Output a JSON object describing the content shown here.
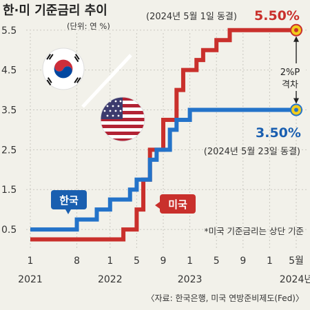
{
  "title": "한·미 기준금리 추이",
  "unit_note": "(단위: 연 %)",
  "colors": {
    "korea": "#1a5fb0",
    "korea_line": "#2473c9",
    "us": "#c9302c",
    "us_line": "#c9302c",
    "background": "#f2f1ea",
    "grid": "#c9c8c0",
    "marker_fill": "#f2cc1c"
  },
  "annotations": {
    "us_final_date": "(2024년 5월 1일 동결)",
    "us_final_rate": "5.50%",
    "korea_final_rate": "3.50%",
    "korea_final_date": "(2024년 5월 23일 동결)",
    "gap_line1": "2%P",
    "gap_line2": "격차",
    "korea_badge": "한국",
    "us_badge": "미국",
    "footnote": "*미국 기준금리는 상단 기준"
  },
  "source": "〈자료: 한국은행, 미국 연방준비제도(Fed)〉",
  "chart_data": {
    "type": "line",
    "title": "한·미 기준금리 추이",
    "ylabel": "",
    "xlabel": "",
    "ylim": [
      0,
      5.6
    ],
    "y_ticks": [
      "0.5",
      "1.5",
      "2.5",
      "3.5",
      "4.5",
      "5.5"
    ],
    "x_ticks": [
      {
        "month": "2021-01",
        "label": "1"
      },
      {
        "month": "2021-08",
        "label": "8"
      },
      {
        "month": "2022-01",
        "label": "1"
      },
      {
        "month": "2022-05",
        "label": "5"
      },
      {
        "month": "2022-09",
        "label": "9"
      },
      {
        "month": "2023-01",
        "label": "1"
      },
      {
        "month": "2023-05",
        "label": "5"
      },
      {
        "month": "2023-09",
        "label": "9"
      },
      {
        "month": "2024-01",
        "label": "1"
      },
      {
        "month": "2024-05",
        "label": "5월"
      }
    ],
    "year_labels": [
      {
        "month": "2021-01",
        "label": "2021"
      },
      {
        "month": "2022-01",
        "label": "2022"
      },
      {
        "month": "2023-01",
        "label": "2023"
      },
      {
        "month": "2024-05",
        "label": "2024년"
      }
    ],
    "x_range": [
      "2021-01",
      "2024-05"
    ],
    "grid": true,
    "series": [
      {
        "name": "한국",
        "step": true,
        "points": [
          {
            "x": "2021-01",
            "y": 0.5
          },
          {
            "x": "2021-08",
            "y": 0.75
          },
          {
            "x": "2021-11",
            "y": 1.0
          },
          {
            "x": "2022-01",
            "y": 1.25
          },
          {
            "x": "2022-04",
            "y": 1.5
          },
          {
            "x": "2022-05",
            "y": 1.75
          },
          {
            "x": "2022-07",
            "y": 2.25
          },
          {
            "x": "2022-08",
            "y": 2.5
          },
          {
            "x": "2022-10",
            "y": 3.0
          },
          {
            "x": "2022-11",
            "y": 3.25
          },
          {
            "x": "2023-01",
            "y": 3.5
          },
          {
            "x": "2024-05",
            "y": 3.5
          }
        ]
      },
      {
        "name": "미국",
        "step": true,
        "points": [
          {
            "x": "2021-01",
            "y": 0.25
          },
          {
            "x": "2022-03",
            "y": 0.5
          },
          {
            "x": "2022-05",
            "y": 1.0
          },
          {
            "x": "2022-06",
            "y": 1.75
          },
          {
            "x": "2022-07",
            "y": 2.5
          },
          {
            "x": "2022-09",
            "y": 3.25
          },
          {
            "x": "2022-11",
            "y": 4.0
          },
          {
            "x": "2022-12",
            "y": 4.5
          },
          {
            "x": "2023-02",
            "y": 4.75
          },
          {
            "x": "2023-03",
            "y": 5.0
          },
          {
            "x": "2023-05",
            "y": 5.25
          },
          {
            "x": "2023-07",
            "y": 5.5
          },
          {
            "x": "2024-05",
            "y": 5.5
          }
        ]
      }
    ]
  }
}
